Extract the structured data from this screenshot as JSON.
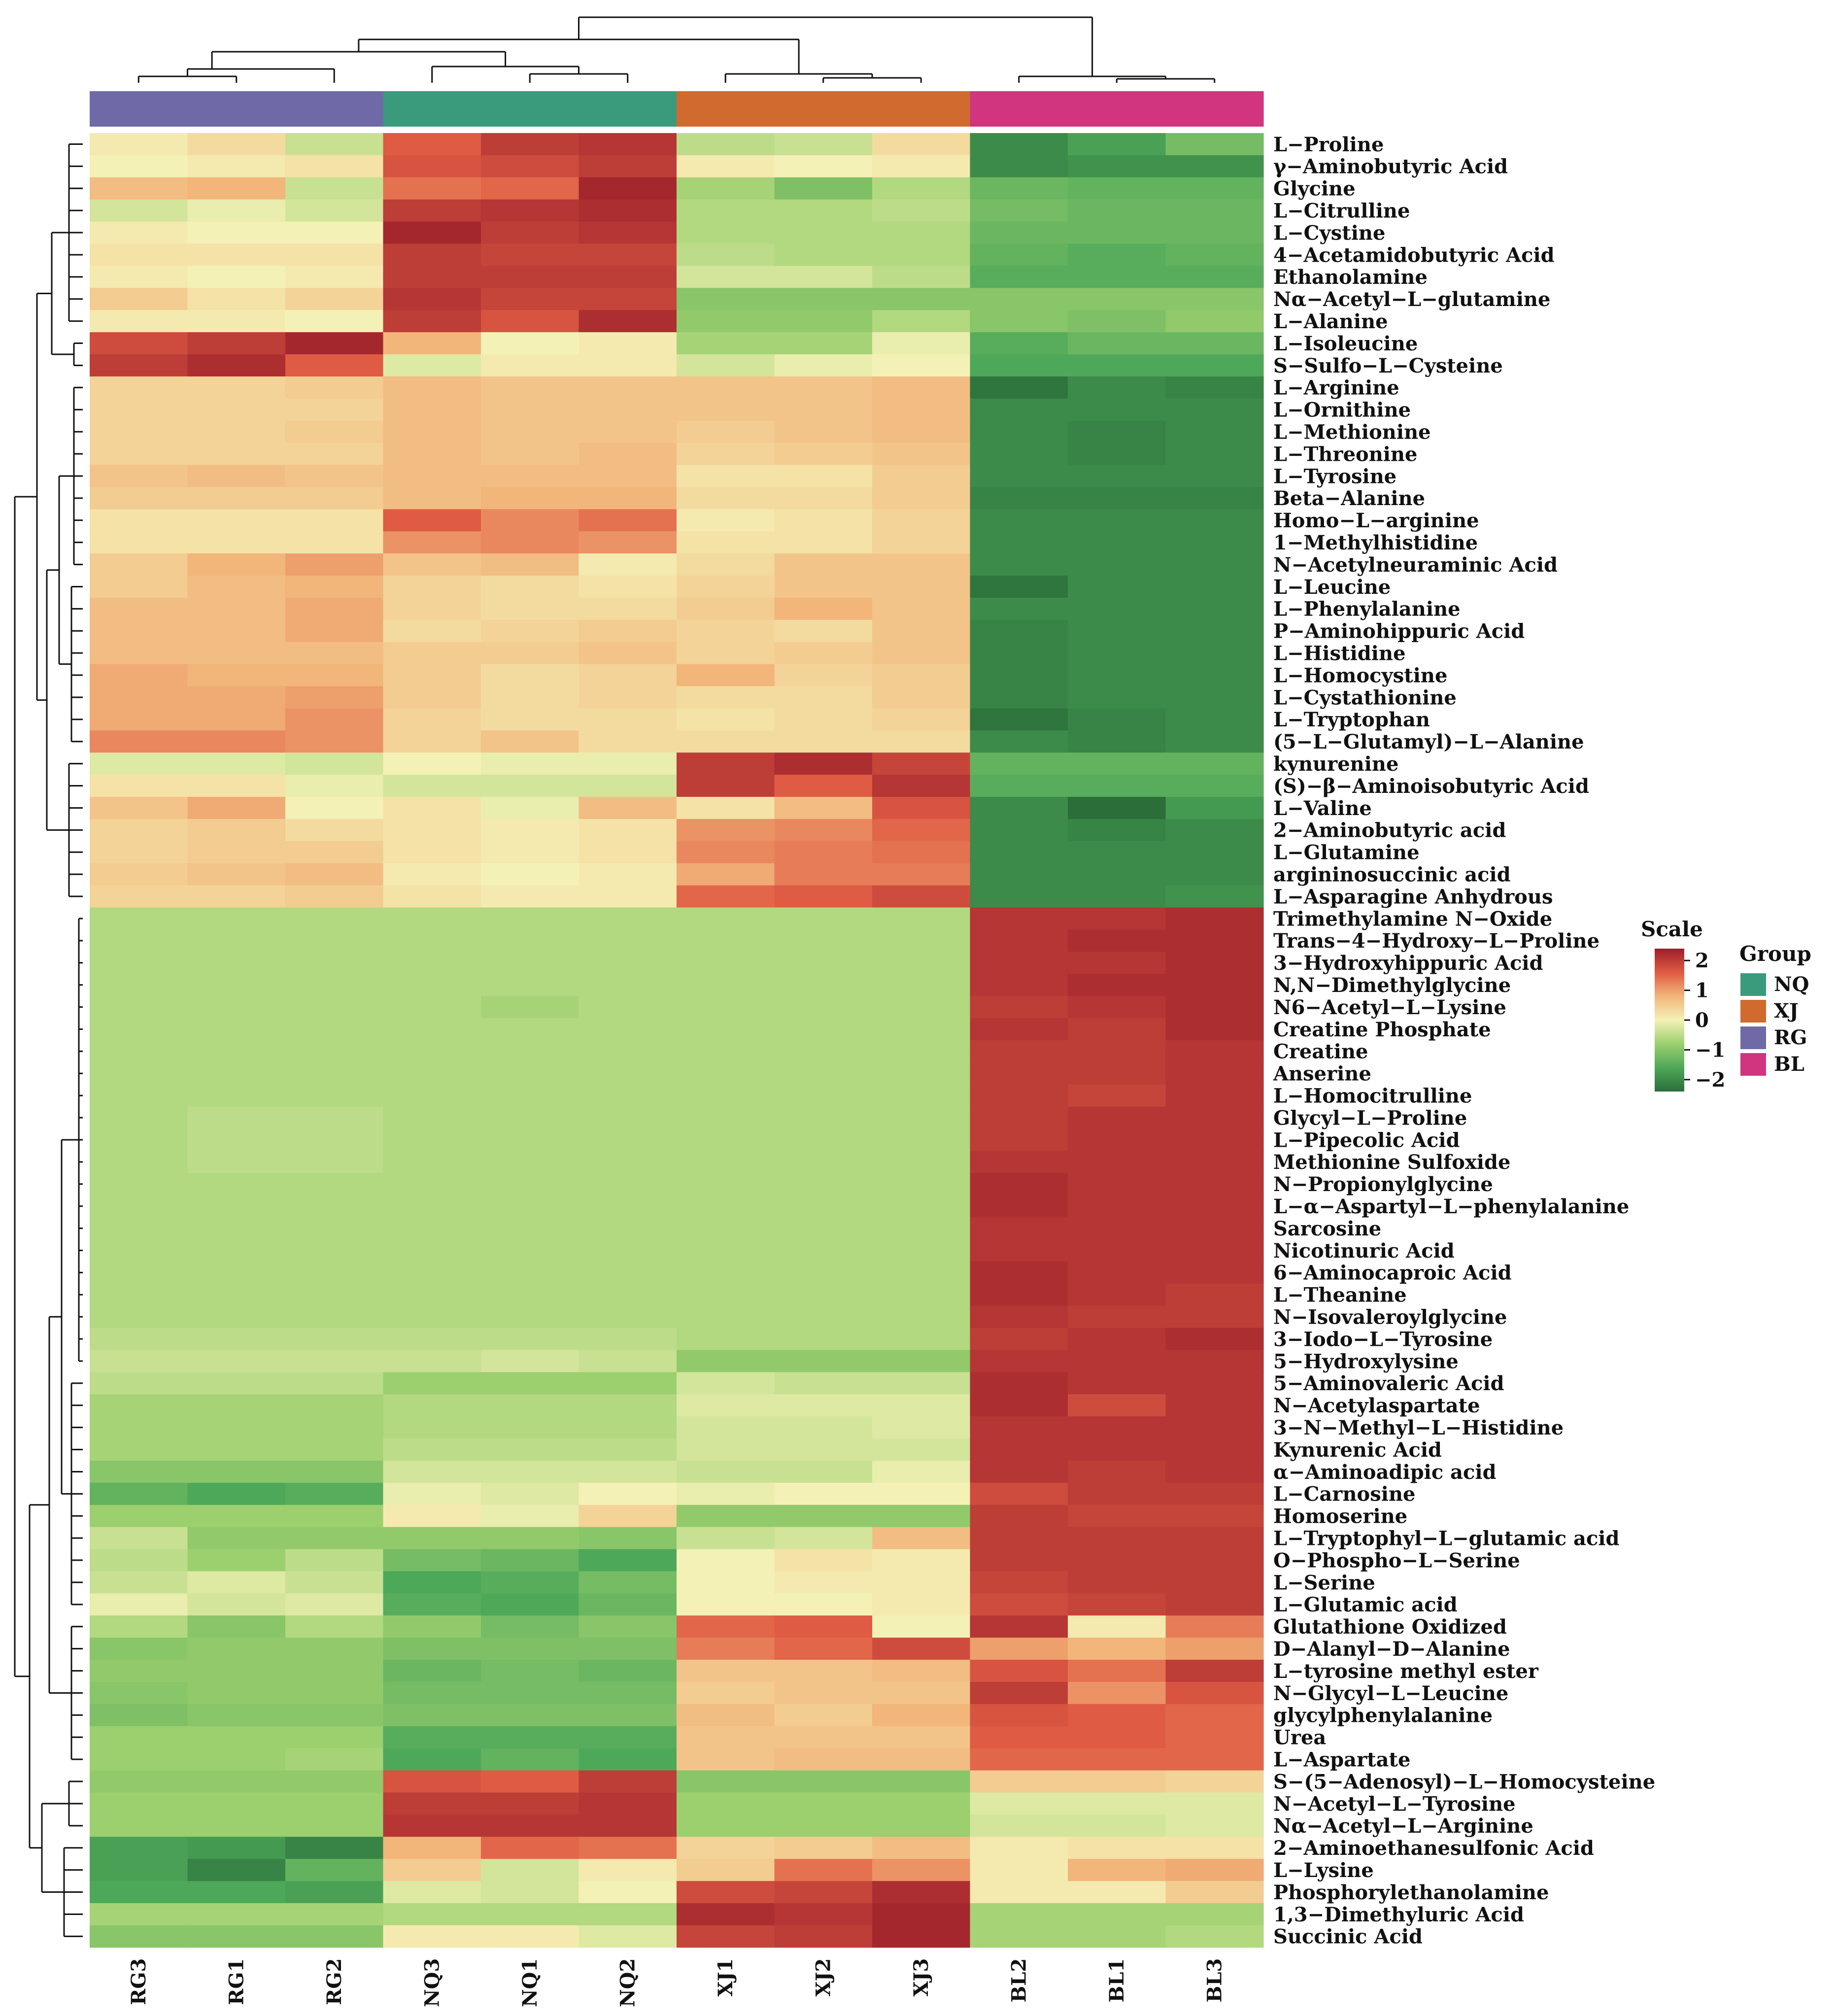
{
  "chart_data": {
    "type": "heatmap",
    "columns": [
      "RG3",
      "RG1",
      "RG2",
      "NQ3",
      "NQ1",
      "NQ2",
      "XJ1",
      "XJ2",
      "XJ3",
      "BL2",
      "BL1",
      "BL3"
    ],
    "column_groups": [
      "RG",
      "RG",
      "RG",
      "NQ",
      "NQ",
      "NQ",
      "XJ",
      "XJ",
      "XJ",
      "BL",
      "BL",
      "BL"
    ],
    "rows": [
      "L−Proline",
      "γ−Aminobutyric Acid",
      "Glycine",
      "L−Citrulline",
      "L−Cystine",
      "4−Acetamidobutyric Acid",
      "Ethanolamine",
      "Nα−Acetyl−L−glutamine",
      "L−Alanine",
      "L−Isoleucine",
      "S−Sulfo−L−Cysteine",
      "L−Arginine",
      "L−Ornithine",
      "L−Methionine",
      "L−Threonine",
      "L−Tyrosine",
      "Beta−Alanine",
      "Homo−L−arginine",
      "1−Methylhistidine",
      "N−Acetylneuraminic Acid",
      "L−Leucine",
      "L−Phenylalanine",
      "P−Aminohippuric Acid",
      "L−Histidine",
      "L−Homocystine",
      "L−Cystathionine",
      "L−Tryptophan",
      "(5−L−Glutamyl)−L−Alanine",
      "kynurenine",
      "(S)−β−Aminoisobutyric Acid",
      "L−Valine",
      "2−Aminobutyric acid",
      "L−Glutamine",
      "argininosuccinic acid",
      "L−Asparagine Anhydrous",
      "Trimethylamine N−Oxide",
      "Trans−4−Hydroxy−L−Proline",
      "3−Hydroxyhippuric Acid",
      "N,N−Dimethylglycine",
      "N6−Acetyl−L−Lysine",
      "Creatine Phosphate",
      "Creatine",
      "Anserine",
      "L−Homocitrulline",
      "Glycyl−L−Proline",
      "L−Pipecolic Acid",
      "Methionine Sulfoxide",
      "N−Propionylglycine",
      "L−α−Aspartyl−L−phenylalanine",
      "Sarcosine",
      "Nicotinuric Acid",
      "6−Aminocaproic Acid",
      "L−Theanine",
      "N−Isovaleroylglycine",
      "3−Iodo−L−Tyrosine",
      "5−Hydroxylysine",
      "5−Aminovaleric Acid",
      "N−Acetylaspartate",
      "3−N−Methyl−L−Histidine",
      "Kynurenic Acid",
      "α−Aminoadipic acid",
      "L−Carnosine",
      "Homoserine",
      "L−Tryptophyl−L−glutamic acid",
      "O−Phospho−L−Serine",
      "L−Serine",
      "L−Glutamic acid",
      "Glutathione Oxidized",
      "D−Alanyl−D−Alanine",
      "L−tyrosine methyl ester",
      "N−Glycyl−L−Leucine",
      "glycylphenylalanine",
      "Urea",
      "L−Aspartate",
      "S−(5−Adenosyl)−L−Homocysteine",
      "N−Acetyl−L−Tyrosine",
      "Nα−Acetyl−L−Arginine",
      "2−Aminoethanesulfonic Acid",
      "L−Lysine",
      "Phosphorylethanolamine",
      "1,3−Dimethyluric Acid",
      "Succinic Acid"
    ],
    "values": [
      [
        0.1,
        0.3,
        -0.4,
        1.6,
        2.0,
        2.1,
        -0.5,
        -0.4,
        0.3,
        -2.0,
        -1.7,
        -1.2
      ],
      [
        0.0,
        0.1,
        0.2,
        1.7,
        1.8,
        2.0,
        0.1,
        0.0,
        0.1,
        -2.0,
        -1.9,
        -1.9
      ],
      [
        0.7,
        0.8,
        -0.4,
        1.4,
        1.5,
        2.3,
        -0.7,
        -1.1,
        -0.6,
        -1.3,
        -1.4,
        -1.4
      ],
      [
        -0.3,
        -0.1,
        -0.3,
        2.0,
        2.1,
        2.2,
        -0.6,
        -0.6,
        -0.5,
        -1.2,
        -1.3,
        -1.3
      ],
      [
        0.1,
        0.0,
        0.0,
        2.3,
        2.0,
        2.1,
        -0.6,
        -0.6,
        -0.6,
        -1.3,
        -1.3,
        -1.3
      ],
      [
        0.2,
        0.2,
        0.2,
        2.0,
        1.9,
        1.9,
        -0.5,
        -0.6,
        -0.6,
        -1.4,
        -1.5,
        -1.4
      ],
      [
        0.1,
        0.0,
        0.1,
        2.0,
        2.0,
        2.0,
        -0.3,
        -0.3,
        -0.5,
        -1.5,
        -1.5,
        -1.5
      ],
      [
        0.5,
        0.2,
        0.4,
        2.1,
        1.9,
        1.9,
        -1.0,
        -1.0,
        -1.0,
        -1.0,
        -1.0,
        -1.0
      ],
      [
        0.1,
        0.1,
        0.0,
        2.0,
        1.7,
        2.2,
        -0.9,
        -0.9,
        -0.6,
        -1.0,
        -1.1,
        -0.9
      ],
      [
        1.8,
        2.0,
        2.3,
        0.8,
        0.0,
        0.1,
        -0.7,
        -0.7,
        -0.1,
        -1.5,
        -1.3,
        -1.3
      ],
      [
        2.0,
        2.2,
        1.6,
        -0.2,
        0.1,
        0.1,
        -0.3,
        -0.1,
        0.0,
        -1.6,
        -1.6,
        -1.6
      ],
      [
        0.4,
        0.4,
        0.5,
        0.7,
        0.6,
        0.6,
        0.6,
        0.6,
        0.7,
        -2.3,
        -2.0,
        -2.1
      ],
      [
        0.4,
        0.4,
        0.4,
        0.7,
        0.6,
        0.6,
        0.6,
        0.6,
        0.7,
        -2.0,
        -2.0,
        -2.0
      ],
      [
        0.4,
        0.4,
        0.5,
        0.7,
        0.6,
        0.6,
        0.5,
        0.6,
        0.7,
        -2.0,
        -2.1,
        -2.0
      ],
      [
        0.4,
        0.4,
        0.4,
        0.7,
        0.6,
        0.7,
        0.4,
        0.5,
        0.6,
        -2.0,
        -2.1,
        -2.0
      ],
      [
        0.6,
        0.7,
        0.6,
        0.7,
        0.7,
        0.7,
        0.2,
        0.2,
        0.5,
        -2.0,
        -2.0,
        -2.0
      ],
      [
        0.5,
        0.5,
        0.5,
        0.7,
        0.8,
        0.8,
        0.3,
        0.3,
        0.5,
        -2.1,
        -2.1,
        -2.1
      ],
      [
        0.2,
        0.2,
        0.2,
        1.6,
        1.2,
        1.4,
        0.1,
        0.2,
        0.4,
        -2.0,
        -2.0,
        -2.0
      ],
      [
        0.2,
        0.2,
        0.2,
        1.1,
        1.2,
        1.1,
        0.2,
        0.2,
        0.4,
        -2.0,
        -2.0,
        -2.0
      ],
      [
        0.5,
        0.8,
        1.0,
        0.6,
        0.7,
        0.1,
        0.3,
        0.6,
        0.6,
        -2.0,
        -2.0,
        -2.0
      ],
      [
        0.5,
        0.7,
        0.8,
        0.4,
        0.3,
        0.2,
        0.4,
        0.6,
        0.6,
        -2.3,
        -2.0,
        -2.0
      ],
      [
        0.7,
        0.7,
        0.9,
        0.4,
        0.3,
        0.3,
        0.5,
        0.8,
        0.6,
        -2.0,
        -2.0,
        -2.0
      ],
      [
        0.7,
        0.7,
        0.9,
        0.3,
        0.4,
        0.5,
        0.4,
        0.3,
        0.6,
        -2.1,
        -2.0,
        -2.0
      ],
      [
        0.7,
        0.7,
        0.7,
        0.5,
        0.5,
        0.6,
        0.4,
        0.5,
        0.6,
        -2.1,
        -2.0,
        -2.0
      ],
      [
        0.9,
        0.8,
        0.8,
        0.5,
        0.3,
        0.4,
        0.8,
        0.4,
        0.5,
        -2.1,
        -2.0,
        -2.0
      ],
      [
        0.9,
        0.9,
        1.0,
        0.5,
        0.3,
        0.4,
        0.3,
        0.3,
        0.5,
        -2.1,
        -2.0,
        -2.0
      ],
      [
        0.9,
        0.9,
        1.1,
        0.4,
        0.3,
        0.3,
        0.2,
        0.3,
        0.4,
        -2.3,
        -2.1,
        -2.0
      ],
      [
        1.2,
        1.2,
        1.1,
        0.4,
        0.6,
        0.3,
        0.3,
        0.3,
        0.3,
        -2.0,
        -2.1,
        -2.0
      ],
      [
        -0.2,
        -0.2,
        -0.3,
        0.0,
        -0.1,
        -0.1,
        2.0,
        2.2,
        1.9,
        -1.4,
        -1.4,
        -1.4
      ],
      [
        0.2,
        0.2,
        -0.1,
        -0.3,
        -0.3,
        -0.3,
        2.0,
        1.6,
        2.1,
        -1.5,
        -1.5,
        -1.5
      ],
      [
        0.6,
        0.9,
        0.0,
        0.2,
        -0.1,
        0.7,
        0.2,
        0.7,
        1.7,
        -2.0,
        -2.4,
        -1.8
      ],
      [
        0.4,
        0.5,
        0.3,
        0.2,
        0.1,
        0.2,
        1.1,
        1.2,
        1.5,
        -2.0,
        -2.1,
        -2.0
      ],
      [
        0.4,
        0.5,
        0.5,
        0.2,
        0.1,
        0.2,
        1.2,
        1.3,
        1.4,
        -2.0,
        -2.0,
        -2.0
      ],
      [
        0.5,
        0.6,
        0.7,
        0.1,
        0.0,
        0.1,
        0.9,
        1.3,
        1.3,
        -2.0,
        -2.0,
        -2.0
      ],
      [
        0.4,
        0.4,
        0.5,
        0.2,
        0.1,
        0.1,
        1.5,
        1.6,
        1.8,
        -2.0,
        -2.0,
        -1.9
      ],
      [
        -0.6,
        -0.6,
        -0.6,
        -0.6,
        -0.6,
        -0.6,
        -0.6,
        -0.6,
        -0.6,
        2.1,
        2.1,
        2.2
      ],
      [
        -0.6,
        -0.6,
        -0.6,
        -0.6,
        -0.6,
        -0.6,
        -0.6,
        -0.6,
        -0.6,
        2.1,
        2.2,
        2.2
      ],
      [
        -0.6,
        -0.6,
        -0.6,
        -0.6,
        -0.6,
        -0.6,
        -0.6,
        -0.6,
        -0.6,
        2.1,
        2.1,
        2.2
      ],
      [
        -0.6,
        -0.6,
        -0.6,
        -0.6,
        -0.6,
        -0.6,
        -0.6,
        -0.6,
        -0.6,
        2.1,
        2.2,
        2.2
      ],
      [
        -0.6,
        -0.6,
        -0.6,
        -0.6,
        -0.7,
        -0.6,
        -0.6,
        -0.6,
        -0.6,
        2.0,
        2.1,
        2.2
      ],
      [
        -0.6,
        -0.6,
        -0.6,
        -0.6,
        -0.6,
        -0.6,
        -0.6,
        -0.6,
        -0.6,
        2.1,
        2.0,
        2.2
      ],
      [
        -0.6,
        -0.6,
        -0.6,
        -0.6,
        -0.6,
        -0.6,
        -0.6,
        -0.6,
        -0.6,
        2.0,
        2.0,
        2.1
      ],
      [
        -0.6,
        -0.6,
        -0.6,
        -0.6,
        -0.6,
        -0.6,
        -0.6,
        -0.6,
        -0.6,
        2.0,
        2.0,
        2.1
      ],
      [
        -0.6,
        -0.6,
        -0.6,
        -0.6,
        -0.6,
        -0.6,
        -0.6,
        -0.6,
        -0.6,
        2.0,
        1.9,
        2.1
      ],
      [
        -0.6,
        -0.5,
        -0.5,
        -0.6,
        -0.6,
        -0.6,
        -0.6,
        -0.6,
        -0.6,
        2.0,
        2.1,
        2.1
      ],
      [
        -0.6,
        -0.5,
        -0.5,
        -0.6,
        -0.6,
        -0.6,
        -0.6,
        -0.6,
        -0.6,
        2.0,
        2.1,
        2.1
      ],
      [
        -0.6,
        -0.5,
        -0.5,
        -0.6,
        -0.6,
        -0.6,
        -0.6,
        -0.6,
        -0.6,
        2.1,
        2.1,
        2.1
      ],
      [
        -0.6,
        -0.6,
        -0.6,
        -0.6,
        -0.6,
        -0.6,
        -0.6,
        -0.6,
        -0.6,
        2.2,
        2.1,
        2.1
      ],
      [
        -0.6,
        -0.6,
        -0.6,
        -0.6,
        -0.6,
        -0.6,
        -0.6,
        -0.6,
        -0.6,
        2.2,
        2.1,
        2.1
      ],
      [
        -0.6,
        -0.6,
        -0.6,
        -0.6,
        -0.6,
        -0.6,
        -0.6,
        -0.6,
        -0.6,
        2.1,
        2.1,
        2.1
      ],
      [
        -0.6,
        -0.6,
        -0.6,
        -0.6,
        -0.6,
        -0.6,
        -0.6,
        -0.6,
        -0.6,
        2.1,
        2.1,
        2.1
      ],
      [
        -0.6,
        -0.6,
        -0.6,
        -0.6,
        -0.6,
        -0.6,
        -0.6,
        -0.6,
        -0.6,
        2.2,
        2.1,
        2.1
      ],
      [
        -0.6,
        -0.6,
        -0.6,
        -0.6,
        -0.6,
        -0.6,
        -0.6,
        -0.6,
        -0.6,
        2.2,
        2.1,
        2.0
      ],
      [
        -0.6,
        -0.6,
        -0.6,
        -0.6,
        -0.6,
        -0.6,
        -0.6,
        -0.6,
        -0.6,
        2.1,
        2.0,
        2.0
      ],
      [
        -0.5,
        -0.5,
        -0.5,
        -0.5,
        -0.5,
        -0.5,
        -0.6,
        -0.6,
        -0.6,
        2.0,
        2.1,
        2.2
      ],
      [
        -0.4,
        -0.4,
        -0.4,
        -0.4,
        -0.3,
        -0.4,
        -0.9,
        -0.9,
        -0.9,
        2.1,
        2.1,
        2.1
      ],
      [
        -0.5,
        -0.5,
        -0.5,
        -0.8,
        -0.8,
        -0.8,
        -0.3,
        -0.4,
        -0.4,
        2.2,
        2.1,
        2.1
      ],
      [
        -0.7,
        -0.7,
        -0.7,
        -0.6,
        -0.6,
        -0.6,
        -0.2,
        -0.2,
        -0.2,
        2.2,
        1.8,
        2.1
      ],
      [
        -0.7,
        -0.7,
        -0.7,
        -0.6,
        -0.6,
        -0.6,
        -0.3,
        -0.3,
        -0.2,
        2.1,
        2.1,
        2.1
      ],
      [
        -0.7,
        -0.7,
        -0.7,
        -0.5,
        -0.5,
        -0.5,
        -0.3,
        -0.3,
        -0.3,
        2.1,
        2.1,
        2.1
      ],
      [
        -1.0,
        -1.0,
        -1.0,
        -0.3,
        -0.3,
        -0.3,
        -0.4,
        -0.4,
        -0.1,
        2.1,
        2.0,
        2.1
      ],
      [
        -1.4,
        -1.6,
        -1.5,
        -0.1,
        -0.2,
        0.0,
        -0.1,
        0.0,
        0.0,
        1.8,
        2.0,
        2.0
      ],
      [
        -0.8,
        -0.8,
        -0.8,
        0.1,
        -0.1,
        0.4,
        -0.9,
        -0.9,
        -0.9,
        2.0,
        1.9,
        1.9
      ],
      [
        -0.4,
        -0.9,
        -0.9,
        -0.9,
        -0.9,
        -1.0,
        -0.4,
        -0.3,
        0.7,
        2.0,
        2.0,
        2.0
      ],
      [
        -0.5,
        -0.8,
        -0.5,
        -1.2,
        -1.3,
        -1.6,
        0.0,
        0.2,
        0.1,
        2.0,
        2.0,
        2.0
      ],
      [
        -0.4,
        -0.2,
        -0.4,
        -1.6,
        -1.5,
        -1.2,
        0.0,
        0.1,
        0.1,
        1.9,
        2.0,
        2.0
      ],
      [
        -0.1,
        -0.3,
        -0.2,
        -1.5,
        -1.6,
        -1.3,
        0.0,
        0.0,
        0.1,
        1.8,
        1.9,
        2.0
      ],
      [
        -0.6,
        -1.0,
        -0.6,
        -0.9,
        -1.2,
        -1.0,
        1.5,
        1.6,
        0.0,
        2.1,
        0.1,
        1.3
      ],
      [
        -1.0,
        -0.9,
        -0.9,
        -1.1,
        -1.1,
        -1.1,
        1.3,
        1.5,
        1.8,
        1.0,
        0.8,
        1.0
      ],
      [
        -0.9,
        -0.9,
        -0.9,
        -1.3,
        -1.2,
        -1.3,
        0.6,
        0.6,
        0.7,
        1.7,
        1.4,
        2.0
      ],
      [
        -1.0,
        -0.9,
        -0.9,
        -1.2,
        -1.2,
        -1.2,
        0.5,
        0.6,
        0.6,
        2.0,
        1.1,
        1.7
      ],
      [
        -1.1,
        -1.0,
        -1.0,
        -1.1,
        -1.1,
        -1.1,
        0.7,
        0.5,
        0.8,
        1.7,
        1.6,
        1.5
      ],
      [
        -0.8,
        -0.8,
        -0.8,
        -1.5,
        -1.5,
        -1.5,
        0.6,
        0.6,
        0.6,
        1.6,
        1.6,
        1.5
      ],
      [
        -0.8,
        -0.8,
        -0.7,
        -1.6,
        -1.4,
        -1.6,
        0.6,
        0.7,
        0.7,
        1.5,
        1.5,
        1.5
      ],
      [
        -0.9,
        -0.9,
        -0.9,
        1.7,
        1.6,
        2.0,
        -1.0,
        -1.0,
        -1.0,
        0.5,
        0.5,
        0.4
      ],
      [
        -0.8,
        -0.8,
        -0.8,
        2.0,
        2.0,
        2.1,
        -0.8,
        -0.8,
        -0.8,
        -0.2,
        -0.2,
        -0.2
      ],
      [
        -0.8,
        -0.8,
        -0.8,
        2.1,
        2.1,
        2.1,
        -0.8,
        -0.8,
        -0.8,
        -0.3,
        -0.3,
        -0.2
      ],
      [
        -1.7,
        -1.8,
        -2.1,
        0.8,
        1.5,
        1.4,
        0.4,
        0.5,
        0.7,
        0.1,
        0.2,
        0.2
      ],
      [
        -1.7,
        -2.1,
        -1.4,
        0.5,
        -0.3,
        0.1,
        0.5,
        1.4,
        1.1,
        0.1,
        0.8,
        0.9
      ],
      [
        -1.6,
        -1.6,
        -1.7,
        -0.2,
        -0.3,
        0.0,
        1.8,
        1.9,
        2.2,
        0.1,
        0.1,
        0.5
      ],
      [
        -0.7,
        -0.7,
        -0.7,
        -0.6,
        -0.6,
        -0.6,
        2.2,
        2.1,
        2.3,
        -0.7,
        -0.7,
        -0.7
      ],
      [
        -1.0,
        -1.0,
        -1.0,
        0.1,
        0.1,
        -0.2,
        1.9,
        2.0,
        2.3,
        -0.7,
        -0.7,
        -0.6
      ]
    ],
    "col_groups_legend": [
      {
        "name": "NQ",
        "color": "#3a9a7c"
      },
      {
        "name": "XJ",
        "color": "#d16a2e"
      },
      {
        "name": "RG",
        "color": "#6f6aa7"
      },
      {
        "name": "BL",
        "color": "#d1357f"
      }
    ],
    "scale": {
      "title": "Scale",
      "ticks": [
        "2",
        "1",
        "0",
        "−1",
        "−2"
      ],
      "tick_values": [
        2,
        1,
        0,
        -1,
        -2
      ],
      "range": [
        -2.4,
        2.4
      ],
      "colors_low_to_high": [
        "#2b6e3a",
        "#4ea859",
        "#9ccf6e",
        "#f4f1b6",
        "#f2b57a",
        "#df5b43",
        "#9b1f2b"
      ]
    },
    "legend_group_title": "Group",
    "legend_placement": "right"
  }
}
